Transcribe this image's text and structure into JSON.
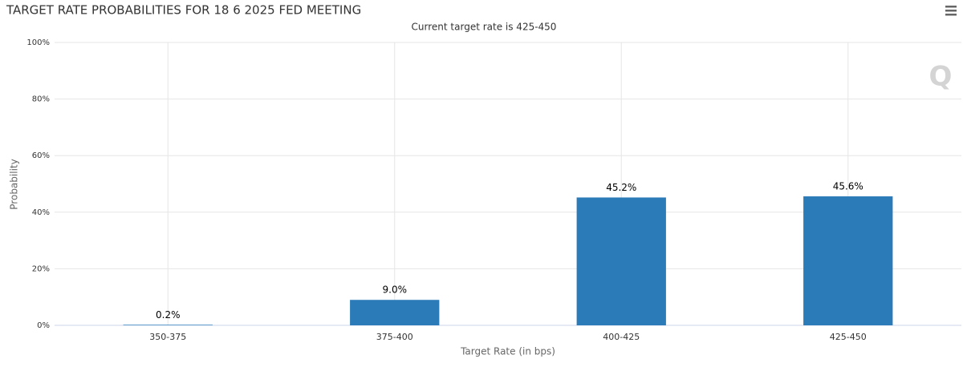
{
  "chart_data": {
    "type": "bar",
    "title": "TARGET RATE PROBABILITIES FOR 18 6 2025 FED MEETING",
    "subtitle": "Current target rate is 425-450",
    "x_label": "Target Rate (in bps)",
    "y_label": "Probability",
    "categories": [
      "350-375",
      "375-400",
      "400-425",
      "425-450"
    ],
    "values": [
      0.2,
      9.0,
      45.2,
      45.6
    ],
    "value_labels": [
      "0.2%",
      "9.0%",
      "45.2%",
      "45.6%"
    ],
    "color": "#2b7bb9",
    "ylim": [
      0,
      100
    ],
    "yticks": [
      {
        "value": 0,
        "label": "0%"
      },
      {
        "value": 20,
        "label": "20%"
      },
      {
        "value": 40,
        "label": "40%"
      },
      {
        "value": 60,
        "label": "60%"
      },
      {
        "value": 80,
        "label": "80%"
      },
      {
        "value": 100,
        "label": "100%"
      }
    ],
    "grid": true
  }
}
